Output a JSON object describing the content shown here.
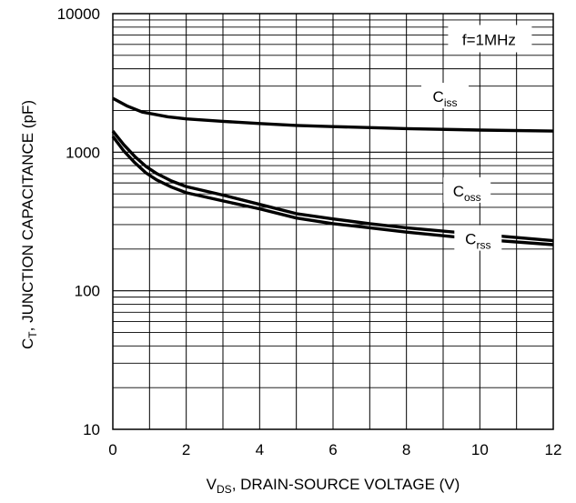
{
  "chart_data": {
    "type": "line",
    "xlabel": {
      "main": "V",
      "sub": "DS",
      "rest": ", DRAIN-SOURCE VOLTAGE (V)"
    },
    "ylabel": {
      "main": "C",
      "sub": "T",
      "rest": ", JUNCTION CAPACITANCE (pF)"
    },
    "xlim": [
      0,
      12
    ],
    "ylim": [
      10,
      10000
    ],
    "yscale": "log",
    "x_ticks": [
      "0",
      "2",
      "4",
      "6",
      "8",
      "10",
      "12"
    ],
    "y_ticks": [
      "10",
      "100",
      "1000",
      "10000"
    ],
    "grid": true,
    "annotation": "f=1MHz",
    "series": [
      {
        "name": "C",
        "sub": "iss",
        "x": [
          0,
          0.4,
          0.8,
          1.5,
          2,
          3,
          4,
          5,
          6,
          8,
          10,
          12
        ],
        "y": [
          2450,
          2150,
          1950,
          1800,
          1740,
          1670,
          1610,
          1560,
          1530,
          1480,
          1445,
          1420
        ]
      },
      {
        "name": "C",
        "sub": "oss",
        "x": [
          0,
          0.3,
          0.6,
          0.9,
          1.2,
          1.6,
          2,
          3,
          4,
          5,
          6,
          7,
          8,
          10,
          12
        ],
        "y": [
          1420,
          1130,
          930,
          790,
          700,
          620,
          565,
          490,
          420,
          360,
          330,
          305,
          285,
          255,
          230
        ]
      },
      {
        "name": "C",
        "sub": "rss",
        "x": [
          0,
          0.3,
          0.6,
          0.9,
          1.2,
          1.6,
          2,
          3,
          4,
          5,
          6,
          7,
          8,
          10,
          12
        ],
        "y": [
          1300,
          1020,
          840,
          710,
          630,
          560,
          510,
          445,
          390,
          335,
          305,
          285,
          265,
          235,
          215
        ]
      }
    ]
  }
}
